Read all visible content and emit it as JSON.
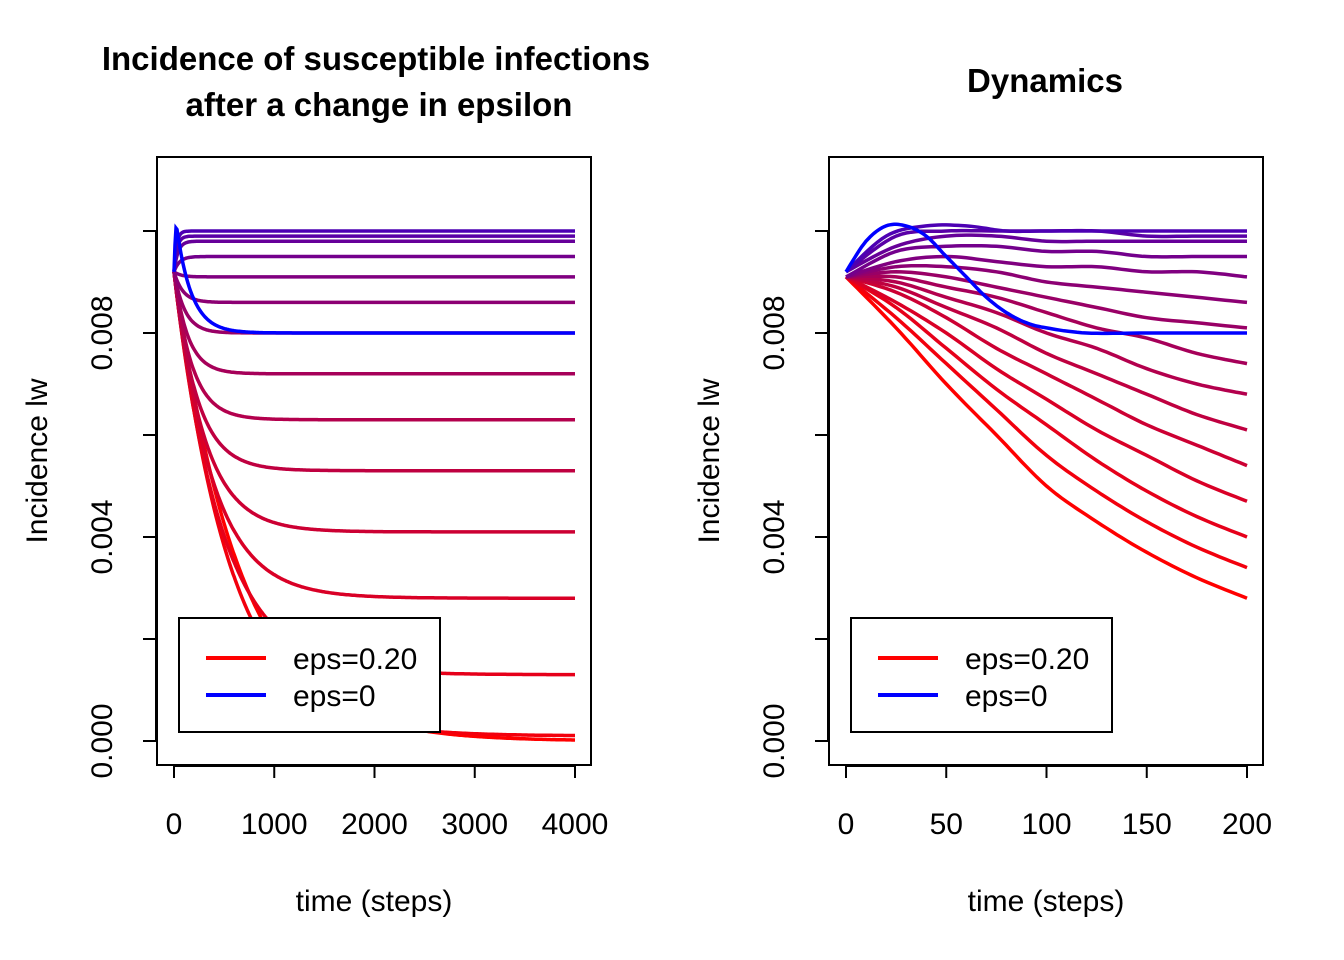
{
  "chart_data": [
    {
      "type": "line",
      "title_lines": [
        "Incidence of susceptible infections",
        "after a change in epsilon"
      ],
      "xlabel": "time (steps)",
      "ylabel": "Incidence lw",
      "xlim": [
        0,
        4000
      ],
      "ylim": [
        0,
        0.01
      ],
      "x_ticks": [
        0,
        1000,
        2000,
        3000,
        4000
      ],
      "x_tick_labels": [
        "0",
        "1000",
        "2000",
        "3000",
        "4000"
      ],
      "y_ticks": [
        0,
        0.002,
        0.004,
        0.006,
        0.008,
        0.01
      ],
      "y_tick_labels": [
        "0.000",
        "",
        "0.004",
        "",
        "0.008",
        ""
      ],
      "grid": false,
      "legend": {
        "position": "bottom-left",
        "entries": [
          {
            "label": "eps=0.20",
            "color": "#ff0000"
          },
          {
            "label": "eps=0",
            "color": "#0000ff"
          }
        ]
      },
      "model": {
        "y0": 0.0092,
        "t_max": 4000
      },
      "series": [
        {
          "eps_fraction": 1.0,
          "color": "#ff0000",
          "final": 0.0,
          "tau": 650
        },
        {
          "eps_fraction": 0.95,
          "color": "#f2000d",
          "final": 0.0001,
          "tau": 560
        },
        {
          "eps_fraction": 0.9,
          "color": "#e6001a",
          "final": 0.0013,
          "tau": 470
        },
        {
          "eps_fraction": 0.85,
          "color": "#d90026",
          "final": 0.0028,
          "tau": 380
        },
        {
          "eps_fraction": 0.8,
          "color": "#cc0033",
          "final": 0.0041,
          "tau": 300
        },
        {
          "eps_fraction": 0.75,
          "color": "#bf0040",
          "final": 0.0053,
          "tau": 230
        },
        {
          "eps_fraction": 0.7,
          "color": "#b3004d",
          "final": 0.0063,
          "tau": 180
        },
        {
          "eps_fraction": 0.65,
          "color": "#a60059",
          "final": 0.0072,
          "tau": 140
        },
        {
          "eps_fraction": 0.6,
          "color": "#990066",
          "final": 0.008,
          "tau": 110
        },
        {
          "eps_fraction": 0.55,
          "color": "#8c0073",
          "final": 0.0086,
          "tau": 90
        },
        {
          "eps_fraction": 0.5,
          "color": "#800080",
          "final": 0.0091,
          "tau": 70
        },
        {
          "eps_fraction": 0.45,
          "color": "#73008c",
          "final": 0.0095,
          "tau": 55
        },
        {
          "eps_fraction": 0.4,
          "color": "#660099",
          "final": 0.0098,
          "tau": 40
        },
        {
          "eps_fraction": 0.35,
          "color": "#5900a6",
          "final": 0.0099,
          "tau": 30
        },
        {
          "eps_fraction": 0.3,
          "color": "#4d00b3",
          "final": 0.01,
          "tau": 25
        },
        {
          "eps_fraction": 0.0,
          "color": "#0000ff",
          "final": 0.008,
          "tau": 150,
          "overshoot": 0.0101,
          "t_peak": 25
        }
      ]
    },
    {
      "type": "line",
      "title_lines": [
        "Dynamics"
      ],
      "xlabel": "time (steps)",
      "ylabel": "Incidence lw",
      "xlim": [
        0,
        200
      ],
      "ylim": [
        0,
        0.01
      ],
      "x_ticks": [
        0,
        50,
        100,
        150,
        200
      ],
      "x_tick_labels": [
        "0",
        "50",
        "100",
        "150",
        "200"
      ],
      "y_ticks": [
        0,
        0.002,
        0.004,
        0.006,
        0.008,
        0.01
      ],
      "y_tick_labels": [
        "0.000",
        "",
        "0.004",
        "",
        "0.008",
        ""
      ],
      "grid": false,
      "legend": {
        "position": "bottom-left",
        "entries": [
          {
            "label": "eps=0.20",
            "color": "#ff0000"
          },
          {
            "label": "eps=0",
            "color": "#0000ff"
          }
        ]
      },
      "model": {
        "t_max": 200
      },
      "series": [
        {
          "color": "#ff0000",
          "points": [
            [
              0,
              0.0091
            ],
            [
              25,
              0.0081
            ],
            [
              50,
              0.007
            ],
            [
              75,
              0.006
            ],
            [
              100,
              0.005
            ],
            [
              125,
              0.0043
            ],
            [
              150,
              0.0037
            ],
            [
              175,
              0.0032
            ],
            [
              200,
              0.0028
            ]
          ]
        },
        {
          "color": "#f2000d",
          "points": [
            [
              0,
              0.0091
            ],
            [
              25,
              0.0083
            ],
            [
              50,
              0.0074
            ],
            [
              75,
              0.0065
            ],
            [
              100,
              0.0056
            ],
            [
              125,
              0.0049
            ],
            [
              150,
              0.0043
            ],
            [
              175,
              0.0038
            ],
            [
              200,
              0.0034
            ]
          ]
        },
        {
          "color": "#e6001a",
          "points": [
            [
              0,
              0.0091
            ],
            [
              25,
              0.0085
            ],
            [
              50,
              0.0077
            ],
            [
              75,
              0.0069
            ],
            [
              100,
              0.0062
            ],
            [
              125,
              0.0055
            ],
            [
              150,
              0.0049
            ],
            [
              175,
              0.0044
            ],
            [
              200,
              0.004
            ]
          ]
        },
        {
          "color": "#d90026",
          "points": [
            [
              0,
              0.0091
            ],
            [
              25,
              0.0086
            ],
            [
              50,
              0.008
            ],
            [
              75,
              0.0073
            ],
            [
              100,
              0.0067
            ],
            [
              125,
              0.0061
            ],
            [
              150,
              0.0056
            ],
            [
              175,
              0.0051
            ],
            [
              200,
              0.0047
            ]
          ]
        },
        {
          "color": "#cc0033",
          "points": [
            [
              0,
              0.0091
            ],
            [
              25,
              0.0088
            ],
            [
              50,
              0.0083
            ],
            [
              75,
              0.0077
            ],
            [
              100,
              0.0072
            ],
            [
              125,
              0.0067
            ],
            [
              150,
              0.0062
            ],
            [
              175,
              0.0058
            ],
            [
              200,
              0.0054
            ]
          ]
        },
        {
          "color": "#bf0040",
          "points": [
            [
              0,
              0.0091
            ],
            [
              25,
              0.0089
            ],
            [
              50,
              0.0085
            ],
            [
              75,
              0.0081
            ],
            [
              100,
              0.0076
            ],
            [
              125,
              0.0072
            ],
            [
              150,
              0.0068
            ],
            [
              175,
              0.0064
            ],
            [
              200,
              0.0061
            ]
          ]
        },
        {
          "color": "#b3004d",
          "points": [
            [
              0,
              0.0091
            ],
            [
              25,
              0.009
            ],
            [
              50,
              0.0087
            ],
            [
              75,
              0.0084
            ],
            [
              100,
              0.008
            ],
            [
              125,
              0.0077
            ],
            [
              150,
              0.0073
            ],
            [
              175,
              0.007
            ],
            [
              200,
              0.0068
            ]
          ]
        },
        {
          "color": "#a60059",
          "points": [
            [
              0,
              0.0091
            ],
            [
              25,
              0.0091
            ],
            [
              50,
              0.0089
            ],
            [
              75,
              0.0087
            ],
            [
              100,
              0.0084
            ],
            [
              125,
              0.0081
            ],
            [
              150,
              0.0079
            ],
            [
              175,
              0.0076
            ],
            [
              200,
              0.0074
            ]
          ]
        },
        {
          "color": "#990066",
          "points": [
            [
              0,
              0.0091
            ],
            [
              25,
              0.0092
            ],
            [
              50,
              0.0091
            ],
            [
              75,
              0.0089
            ],
            [
              100,
              0.0087
            ],
            [
              125,
              0.0085
            ],
            [
              150,
              0.0083
            ],
            [
              175,
              0.0082
            ],
            [
              200,
              0.0081
            ]
          ]
        },
        {
          "color": "#8c0073",
          "points": [
            [
              0,
              0.0091
            ],
            [
              25,
              0.0093
            ],
            [
              50,
              0.0093
            ],
            [
              75,
              0.0092
            ],
            [
              100,
              0.009
            ],
            [
              125,
              0.0089
            ],
            [
              150,
              0.0088
            ],
            [
              175,
              0.0087
            ],
            [
              200,
              0.0086
            ]
          ]
        },
        {
          "color": "#800080",
          "points": [
            [
              0,
              0.0091
            ],
            [
              25,
              0.0094
            ],
            [
              50,
              0.0095
            ],
            [
              75,
              0.0094
            ],
            [
              100,
              0.0093
            ],
            [
              125,
              0.0093
            ],
            [
              150,
              0.0092
            ],
            [
              175,
              0.0092
            ],
            [
              200,
              0.0091
            ]
          ]
        },
        {
          "color": "#73008c",
          "points": [
            [
              0,
              0.0091
            ],
            [
              25,
              0.0096
            ],
            [
              50,
              0.0097
            ],
            [
              75,
              0.0097
            ],
            [
              100,
              0.0096
            ],
            [
              125,
              0.0096
            ],
            [
              150,
              0.0095
            ],
            [
              175,
              0.0095
            ],
            [
              200,
              0.0095
            ]
          ]
        },
        {
          "color": "#660099",
          "points": [
            [
              0,
              0.0092
            ],
            [
              25,
              0.0097
            ],
            [
              50,
              0.0099
            ],
            [
              75,
              0.0099
            ],
            [
              100,
              0.0098
            ],
            [
              125,
              0.0098
            ],
            [
              150,
              0.0098
            ],
            [
              175,
              0.0098
            ],
            [
              200,
              0.0098
            ]
          ]
        },
        {
          "color": "#5900a6",
          "points": [
            [
              0,
              0.0092
            ],
            [
              25,
              0.0099
            ],
            [
              50,
              0.01
            ],
            [
              75,
              0.01
            ],
            [
              100,
              0.01
            ],
            [
              125,
              0.01
            ],
            [
              150,
              0.0099
            ],
            [
              175,
              0.0099
            ],
            [
              200,
              0.0099
            ]
          ]
        },
        {
          "color": "#4d00b3",
          "points": [
            [
              0,
              0.0092
            ],
            [
              20,
              0.0099
            ],
            [
              40,
              0.0101
            ],
            [
              60,
              0.0101
            ],
            [
              80,
              0.01
            ],
            [
              100,
              0.01
            ],
            [
              150,
              0.01
            ],
            [
              200,
              0.01
            ]
          ]
        },
        {
          "color": "#0000ff",
          "points": [
            [
              0,
              0.0092
            ],
            [
              10,
              0.0098
            ],
            [
              20,
              0.0101
            ],
            [
              30,
              0.0101
            ],
            [
              40,
              0.0099
            ],
            [
              50,
              0.0095
            ],
            [
              60,
              0.0091
            ],
            [
              70,
              0.0087
            ],
            [
              80,
              0.0084
            ],
            [
              90,
              0.0082
            ],
            [
              100,
              0.0081
            ],
            [
              120,
              0.008
            ],
            [
              150,
              0.008
            ],
            [
              200,
              0.008
            ]
          ]
        }
      ]
    }
  ]
}
